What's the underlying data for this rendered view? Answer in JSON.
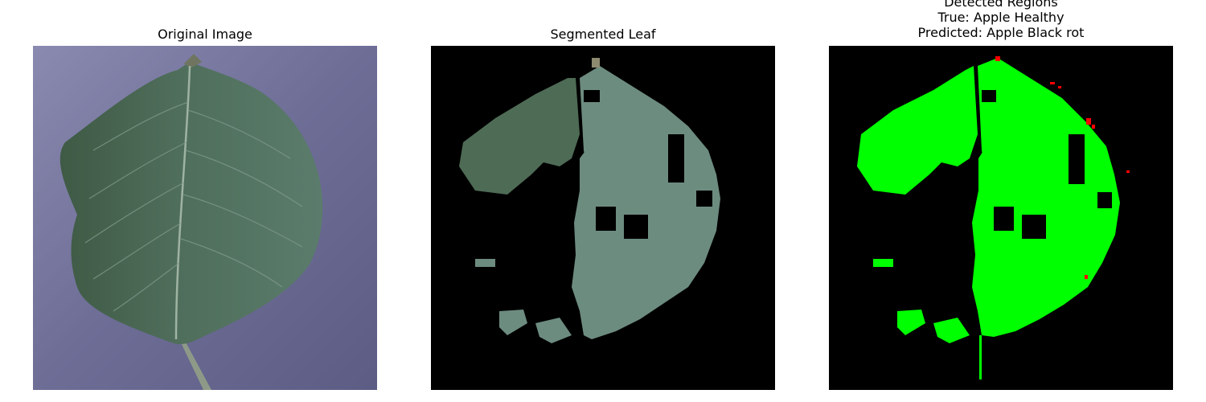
{
  "panels": [
    {
      "title": "Original Image"
    },
    {
      "title": "Segmented Leaf"
    },
    {
      "title_lines": [
        "Detected Regions",
        "True: Apple Healthy",
        "Predicted: Apple Black rot"
      ]
    }
  ],
  "colors": {
    "background_original": "#6f6f9a",
    "leaf": "#4d6b5e",
    "segmented_background": "#000000",
    "detected_region": "#00ff00",
    "diseased_spot": "#ff0000"
  }
}
